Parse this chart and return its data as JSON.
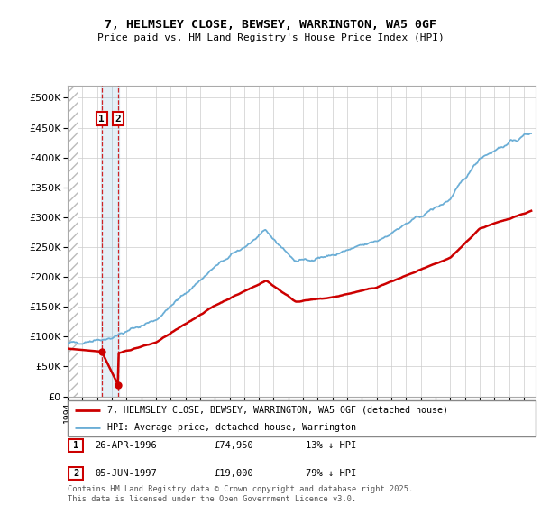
{
  "title1": "7, HELMSLEY CLOSE, BEWSEY, WARRINGTON, WA5 0GF",
  "title2": "Price paid vs. HM Land Registry's House Price Index (HPI)",
  "legend_line1": "7, HELMSLEY CLOSE, BEWSEY, WARRINGTON, WA5 0GF (detached house)",
  "legend_line2": "HPI: Average price, detached house, Warrington",
  "annotation1_date": "26-APR-1996",
  "annotation1_price": "£74,950",
  "annotation1_hpi": "13% ↓ HPI",
  "annotation2_date": "05-JUN-1997",
  "annotation2_price": "£19,000",
  "annotation2_hpi": "79% ↓ HPI",
  "footer": "Contains HM Land Registry data © Crown copyright and database right 2025.\nThis data is licensed under the Open Government Licence v3.0.",
  "price_color": "#cc0000",
  "hpi_color": "#6baed6",
  "annotation_box_color": "#cc0000",
  "ylim": [
    0,
    520000
  ],
  "yticks": [
    0,
    50000,
    100000,
    150000,
    200000,
    250000,
    300000,
    350000,
    400000,
    450000,
    500000
  ],
  "sale1_year": 1996.32,
  "sale1_price": 74950,
  "sale2_year": 1997.43,
  "sale2_price": 19000,
  "xmin": 1994.0,
  "xmax": 2025.8
}
